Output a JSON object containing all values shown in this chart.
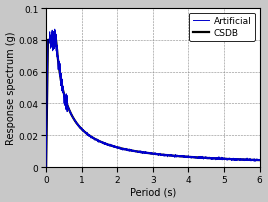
{
  "xlabel": "Period (s)",
  "ylabel": "Response spectrum (g)",
  "xlim": [
    0,
    6
  ],
  "ylim": [
    0,
    0.1
  ],
  "xticks": [
    0,
    1,
    2,
    3,
    4,
    5,
    6
  ],
  "yticks": [
    0,
    0.02,
    0.04,
    0.06,
    0.08,
    0.1
  ],
  "ytick_labels": [
    "0",
    "0.02",
    "0.04",
    "0.06",
    "0.08",
    "0.1"
  ],
  "legend_labels": [
    "Artificial",
    "CSDB"
  ],
  "art_color": "#0000cc",
  "csdb_color": "#000000",
  "art_linewidth": 0.7,
  "csdb_linewidth": 1.6,
  "background_color": "#c8c8c8",
  "plot_bg_color": "#ffffff",
  "grid_color": "#888888",
  "figsize": [
    2.68,
    2.03
  ],
  "dpi": 100,
  "peak_T": 0.28,
  "peak_val": 0.08,
  "T0": 0.05,
  "decay_exp": 0.95
}
